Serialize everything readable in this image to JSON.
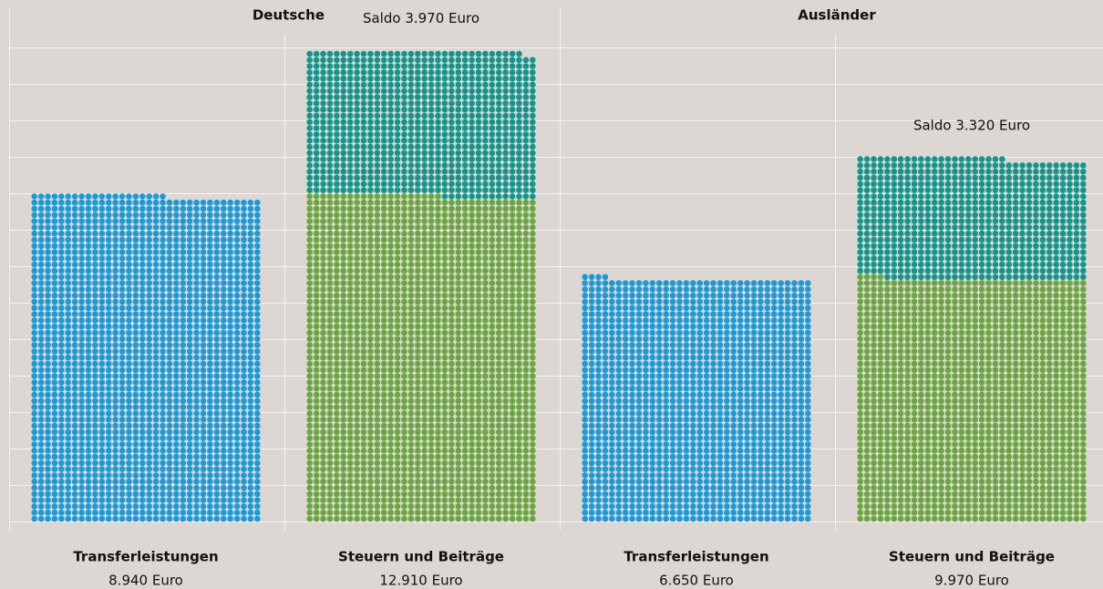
{
  "chart_data": {
    "type": "waffle",
    "ylim": [
      0,
      13000
    ],
    "yticks": [
      0,
      1000,
      2000,
      3000,
      4000,
      5000,
      6000,
      7000,
      8000,
      9000,
      10000,
      11000,
      12000,
      13000
    ],
    "grid": true,
    "groups": [
      {
        "name": "Deutsche",
        "bars": [
          {
            "label": "Transferleistungen",
            "value": 8940,
            "value_label": "8.940 Euro",
            "segments": [
              {
                "color": "#1a9ad6",
                "value": 8940
              }
            ]
          },
          {
            "label": "Steuern und Beiträge",
            "value": 12910,
            "value_label": "12.910 Euro",
            "segments": [
              {
                "color": "#6aa63f",
                "value": 8940
              },
              {
                "color": "#12958a",
                "value": 3970,
                "value_label": "Saldo 3.970 Euro"
              }
            ]
          }
        ]
      },
      {
        "name": "Ausländer",
        "bars": [
          {
            "label": "Transferleistungen",
            "value": 6650,
            "value_label": "6.650 Euro",
            "segments": [
              {
                "color": "#1a9ad6",
                "value": 6650
              }
            ]
          },
          {
            "label": "Steuern und Beiträge",
            "value": 9970,
            "value_label": "9.970 Euro",
            "segments": [
              {
                "color": "#6aa63f",
                "value": 6650
              },
              {
                "color": "#12958a",
                "value": 3320,
                "value_label": "Saldo 3.320 Euro"
              }
            ]
          }
        ]
      }
    ]
  }
}
